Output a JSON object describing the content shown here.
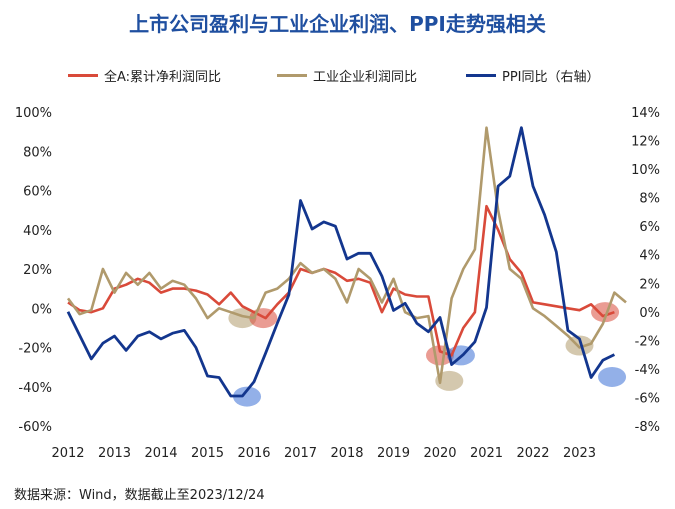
{
  "chart_data": {
    "type": "line",
    "title": "上市公司盈利与工业企业利润、PPI走势强相关",
    "x_range": [
      2012,
      2024
    ],
    "x_ticks": [
      "2012",
      "2013",
      "2014",
      "2015",
      "2016",
      "2017",
      "2018",
      "2019",
      "2020",
      "2021",
      "2022",
      "2023"
    ],
    "y_left": {
      "range": [
        -60,
        100
      ],
      "ticks": [
        "100%",
        "80%",
        "60%",
        "40%",
        "20%",
        "0%",
        "-20%",
        "-40%",
        "-60%"
      ]
    },
    "y_right": {
      "range": [
        -8,
        14
      ],
      "ticks": [
        "14%",
        "12%",
        "10%",
        "8%",
        "6%",
        "4%",
        "2%",
        "0%",
        "-2%",
        "-4%",
        "-6%",
        "-8%"
      ]
    },
    "legend_position": "top",
    "series": [
      {
        "name": "全A:累计净利润同比",
        "color": "#d94a3a",
        "axis": "left",
        "points": [
          [
            2012.0,
            3
          ],
          [
            2012.25,
            -1
          ],
          [
            2012.5,
            -2
          ],
          [
            2012.75,
            0
          ],
          [
            2013.0,
            10
          ],
          [
            2013.25,
            12
          ],
          [
            2013.5,
            15
          ],
          [
            2013.75,
            13
          ],
          [
            2014.0,
            8
          ],
          [
            2014.25,
            10
          ],
          [
            2014.5,
            10
          ],
          [
            2014.75,
            9
          ],
          [
            2015.0,
            7
          ],
          [
            2015.25,
            2
          ],
          [
            2015.5,
            8
          ],
          [
            2015.75,
            1
          ],
          [
            2016.0,
            -2
          ],
          [
            2016.25,
            -5
          ],
          [
            2016.5,
            2
          ],
          [
            2016.75,
            8
          ],
          [
            2017.0,
            20
          ],
          [
            2017.25,
            18
          ],
          [
            2017.5,
            20
          ],
          [
            2017.75,
            18
          ],
          [
            2018.0,
            14
          ],
          [
            2018.25,
            15
          ],
          [
            2018.5,
            13
          ],
          [
            2018.75,
            -2
          ],
          [
            2019.0,
            10
          ],
          [
            2019.25,
            7
          ],
          [
            2019.5,
            6
          ],
          [
            2019.75,
            6
          ],
          [
            2020.0,
            -22
          ],
          [
            2020.25,
            -24
          ],
          [
            2020.5,
            -10
          ],
          [
            2020.75,
            -2
          ],
          [
            2021.0,
            52
          ],
          [
            2021.25,
            40
          ],
          [
            2021.5,
            25
          ],
          [
            2021.75,
            18
          ],
          [
            2022.0,
            3
          ],
          [
            2022.25,
            2
          ],
          [
            2022.5,
            1
          ],
          [
            2022.75,
            0
          ],
          [
            2023.0,
            -1
          ],
          [
            2023.25,
            2
          ],
          [
            2023.5,
            -4
          ],
          [
            2023.75,
            -2
          ]
        ]
      },
      {
        "name": "工业企业利润同比",
        "color": "#b09a6c",
        "axis": "left",
        "points": [
          [
            2012.0,
            5
          ],
          [
            2012.25,
            -3
          ],
          [
            2012.5,
            -1
          ],
          [
            2012.75,
            20
          ],
          [
            2013.0,
            8
          ],
          [
            2013.25,
            18
          ],
          [
            2013.5,
            12
          ],
          [
            2013.75,
            18
          ],
          [
            2014.0,
            10
          ],
          [
            2014.25,
            14
          ],
          [
            2014.5,
            12
          ],
          [
            2014.75,
            5
          ],
          [
            2015.0,
            -5
          ],
          [
            2015.25,
            0
          ],
          [
            2015.5,
            -2
          ],
          [
            2015.75,
            -4
          ],
          [
            2016.0,
            -5
          ],
          [
            2016.25,
            8
          ],
          [
            2016.5,
            10
          ],
          [
            2016.75,
            15
          ],
          [
            2017.0,
            23
          ],
          [
            2017.25,
            18
          ],
          [
            2017.5,
            20
          ],
          [
            2017.75,
            15
          ],
          [
            2018.0,
            3
          ],
          [
            2018.25,
            20
          ],
          [
            2018.5,
            15
          ],
          [
            2018.75,
            3
          ],
          [
            2019.0,
            15
          ],
          [
            2019.25,
            -2
          ],
          [
            2019.5,
            -5
          ],
          [
            2019.75,
            -4
          ],
          [
            2020.0,
            -38
          ],
          [
            2020.25,
            5
          ],
          [
            2020.5,
            20
          ],
          [
            2020.75,
            30
          ],
          [
            2021.0,
            92
          ],
          [
            2021.25,
            50
          ],
          [
            2021.5,
            20
          ],
          [
            2021.75,
            15
          ],
          [
            2022.0,
            0
          ],
          [
            2022.25,
            -4
          ],
          [
            2022.5,
            -9
          ],
          [
            2022.75,
            -14
          ],
          [
            2023.0,
            -20
          ],
          [
            2023.25,
            -18
          ],
          [
            2023.5,
            -8
          ],
          [
            2023.75,
            8
          ],
          [
            2024.0,
            3
          ]
        ]
      },
      {
        "name": "PPI同比（右轴）",
        "color": "#13368e",
        "axis": "right",
        "points": [
          [
            2012.0,
            0
          ],
          [
            2012.5,
            -3.3
          ],
          [
            2012.75,
            -2.2
          ],
          [
            2013.0,
            -1.7
          ],
          [
            2013.25,
            -2.7
          ],
          [
            2013.5,
            -1.7
          ],
          [
            2013.75,
            -1.4
          ],
          [
            2014.0,
            -1.9
          ],
          [
            2014.25,
            -1.5
          ],
          [
            2014.5,
            -1.3
          ],
          [
            2014.75,
            -2.5
          ],
          [
            2015.0,
            -4.5
          ],
          [
            2015.25,
            -4.6
          ],
          [
            2015.5,
            -5.9
          ],
          [
            2015.75,
            -5.9
          ],
          [
            2016.0,
            -4.9
          ],
          [
            2016.25,
            -2.9
          ],
          [
            2016.5,
            -0.8
          ],
          [
            2016.75,
            1.2
          ],
          [
            2017.0,
            7.8
          ],
          [
            2017.25,
            5.8
          ],
          [
            2017.5,
            6.3
          ],
          [
            2017.75,
            6.0
          ],
          [
            2018.0,
            3.7
          ],
          [
            2018.25,
            4.1
          ],
          [
            2018.5,
            4.1
          ],
          [
            2018.75,
            2.5
          ],
          [
            2019.0,
            0.1
          ],
          [
            2019.25,
            0.6
          ],
          [
            2019.5,
            -0.8
          ],
          [
            2019.75,
            -1.4
          ],
          [
            2020.0,
            -0.4
          ],
          [
            2020.25,
            -3.7
          ],
          [
            2020.5,
            -3.0
          ],
          [
            2020.75,
            -2.1
          ],
          [
            2021.0,
            0.3
          ],
          [
            2021.25,
            8.8
          ],
          [
            2021.5,
            9.5
          ],
          [
            2021.75,
            12.9
          ],
          [
            2022.0,
            8.8
          ],
          [
            2022.25,
            6.8
          ],
          [
            2022.5,
            4.2
          ],
          [
            2022.75,
            -1.3
          ],
          [
            2023.0,
            -1.9
          ],
          [
            2023.25,
            -4.6
          ],
          [
            2023.5,
            -3.4
          ],
          [
            2023.75,
            -3.0
          ]
        ]
      }
    ],
    "highlights": [
      {
        "x": 2015.85,
        "axis": "left",
        "y": -45,
        "color": "#3b6fd6"
      },
      {
        "x": 2015.75,
        "axis": "left",
        "y": -5,
        "color": "#b09a6c"
      },
      {
        "x": 2016.2,
        "axis": "left",
        "y": -5,
        "color": "#d94a3a"
      },
      {
        "x": 2020.0,
        "axis": "left",
        "y": -24,
        "color": "#d94a3a"
      },
      {
        "x": 2020.45,
        "axis": "left",
        "y": -24,
        "color": "#3b6fd6"
      },
      {
        "x": 2020.2,
        "axis": "left",
        "y": -37,
        "color": "#b09a6c"
      },
      {
        "x": 2023.0,
        "axis": "left",
        "y": -19,
        "color": "#b09a6c"
      },
      {
        "x": 2023.55,
        "axis": "left",
        "y": -2,
        "color": "#d94a3a"
      },
      {
        "x": 2023.7,
        "axis": "left",
        "y": -35,
        "color": "#3b6fd6"
      }
    ]
  },
  "source": "数据来源：Wind，数据截止至2023/12/24"
}
